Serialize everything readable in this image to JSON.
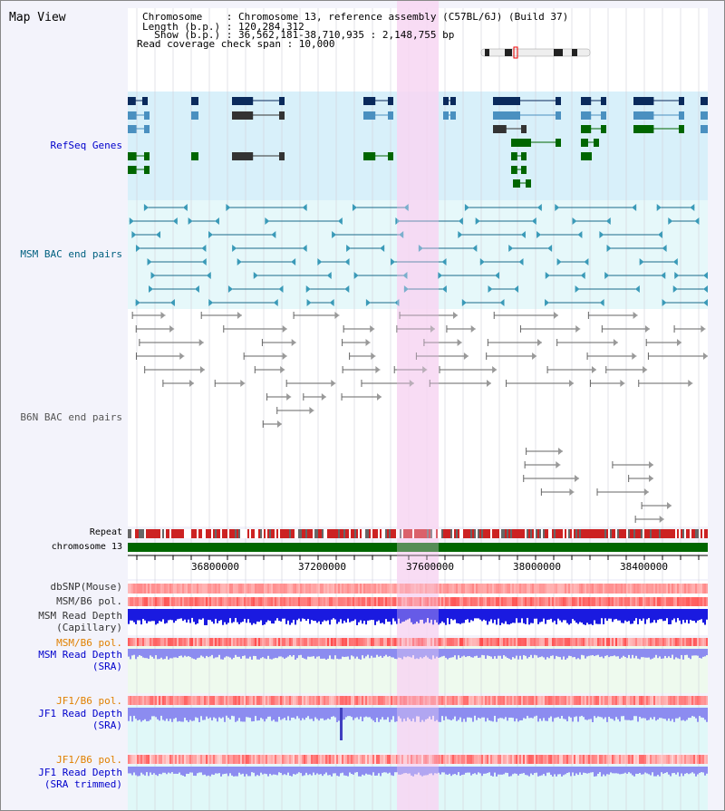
{
  "title": "Map View",
  "header": {
    "chromosome_line": "Chromosome    : Chromosome 13, reference assembly (C57BL/6J) (Build 37)",
    "length_line": "Length (b.p.) : 120,284,312",
    "show_line": "  Show (b.p.) : 36,562,181-38,710,935 : 2,148,755 bp",
    "coverage_line": "Read coverage check span : 10,000"
  },
  "tracks": {
    "refseq": "RefSeq Genes",
    "msm_bac": "MSM BAC end pairs",
    "b6n_bac": "B6N BAC end pairs",
    "repeat": "Repeat",
    "chromosome": "chromosome 13",
    "dbsnp": "dbSNP(Mouse)",
    "msm_b6_pol": "MSM/B6 pol.",
    "msm_depth_cap_1": "MSM Read Depth",
    "msm_depth_cap_2": "(Capillary)",
    "msm_b6_pol_2": "MSM/B6 pol.",
    "msm_depth_sra_1": "MSM Read Depth",
    "msm_depth_sra_2": "(SRA)",
    "jf1_b6_pol": "JF1/B6 pol.",
    "jf1_depth_sra_1": "JF1 Read Depth",
    "jf1_depth_sra_2": "(SRA)",
    "jf1_b6_pol_2": "JF1/B6 pol.",
    "jf1_depth_trim_1": "JF1 Read Depth",
    "jf1_depth_trim_2": "(SRA trimmed)"
  },
  "axis": {
    "ticks": [
      "36800000",
      "37200000",
      "37600000",
      "38000000",
      "38400000"
    ]
  },
  "colors": {
    "refseq_label": "#0000cc",
    "msm_label": "#006080",
    "b6n_label": "#555555",
    "pol_orange": "#e08000",
    "highlight": "#f7d7f3",
    "gene_dark": "#0a2a5c",
    "gene_mid": "#4a90c0",
    "gene_green": "#006600",
    "depth_blue": "#1a1ae0",
    "depth_light": "#8c8cf0"
  }
}
